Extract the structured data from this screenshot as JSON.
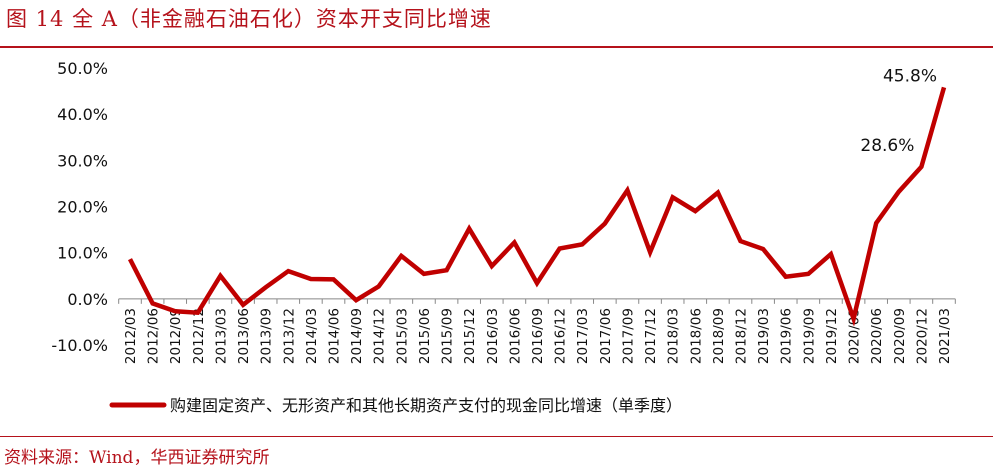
{
  "title": "图 14 全 A（非金融石油石化）资本开支同比增速",
  "source": "资料来源：Wind，华西证券研究所",
  "chart_data": {
    "type": "line",
    "color": "#c00000",
    "categories": [
      "2012/03",
      "2012/06",
      "2012/09",
      "2012/12",
      "2013/03",
      "2013/06",
      "2013/09",
      "2013/12",
      "2014/03",
      "2014/06",
      "2014/09",
      "2014/12",
      "2015/03",
      "2015/06",
      "2015/09",
      "2015/12",
      "2016/03",
      "2016/06",
      "2016/09",
      "2016/12",
      "2017/03",
      "2017/06",
      "2017/09",
      "2017/12",
      "2018/03",
      "2018/06",
      "2018/09",
      "2018/12",
      "2019/03",
      "2019/06",
      "2019/09",
      "2019/12",
      "2020/03",
      "2020/06",
      "2020/09",
      "2020/12",
      "2021/03"
    ],
    "series": [
      {
        "name": "购建固定资产、无形资产和其他长期资产支付的现金同比增速（单季度）",
        "values": [
          8.6,
          -1.0,
          -2.7,
          -3.0,
          5.0,
          -1.3,
          2.5,
          6.0,
          4.3,
          4.2,
          -0.3,
          2.7,
          9.3,
          5.4,
          6.2,
          15.2,
          7.1,
          12.2,
          3.4,
          10.9,
          11.8,
          16.3,
          23.5,
          10.1,
          22.0,
          19.0,
          23.0,
          12.5,
          10.8,
          4.8,
          5.4,
          9.7,
          -4.3,
          16.4,
          23.2,
          28.6,
          45.8
        ]
      }
    ],
    "yticks": [
      "50.0%",
      "40.0%",
      "30.0%",
      "20.0%",
      "10.0%",
      "0.0%",
      "-10.0%"
    ],
    "ylim": [
      -10,
      50
    ],
    "annotations": [
      {
        "index": 35,
        "label": "28.6%"
      },
      {
        "index": 36,
        "label": "45.8%"
      }
    ],
    "legend_position": "bottom",
    "grid": false
  }
}
